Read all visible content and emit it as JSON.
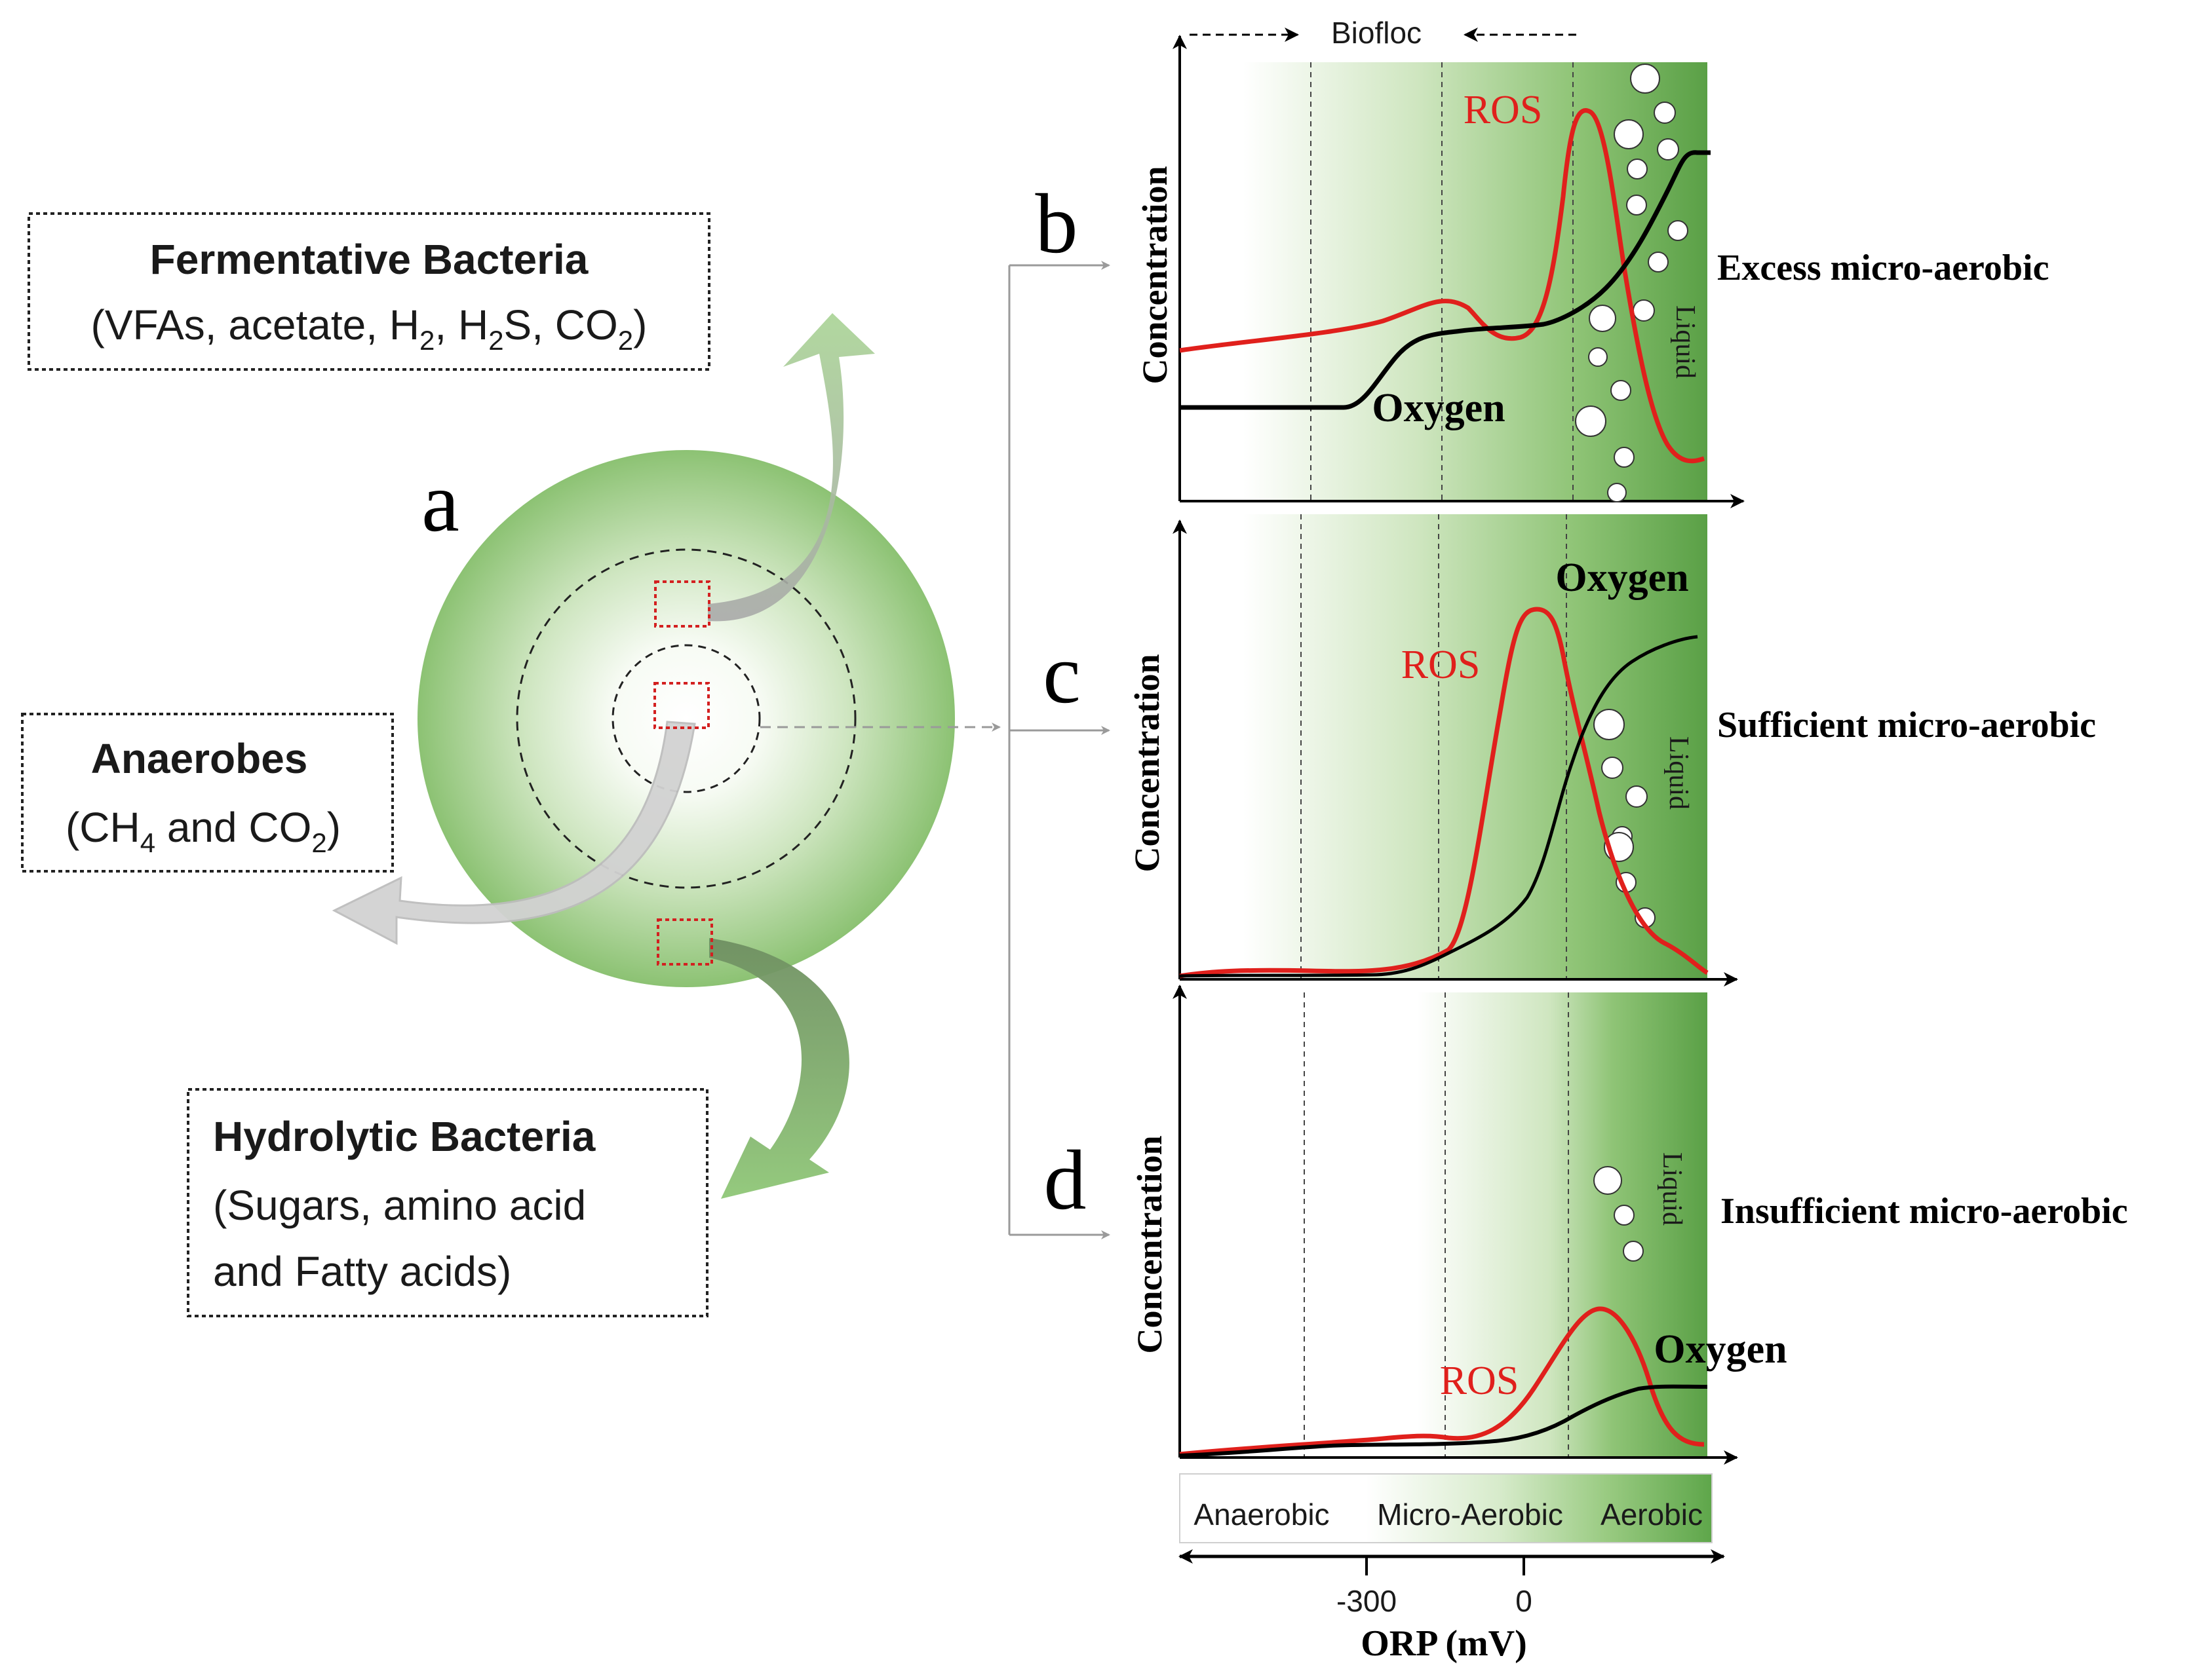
{
  "panel_a": {
    "label": "a",
    "fermentative": {
      "title": "Fermentative Bacteria",
      "products_prefix": "(VFAs, acetate, H",
      "products_sub1": "2",
      "products_mid1": ", H",
      "products_sub2": "2",
      "products_mid2": "S, CO",
      "products_sub3": "2",
      "products_suffix": ")"
    },
    "anaerobes": {
      "title": "Anaerobes",
      "products_prefix": "(CH",
      "products_sub1": "4",
      "products_mid": " and CO",
      "products_sub2": "2",
      "products_suffix": ")"
    },
    "hydrolytic": {
      "title": "Hydrolytic Bacteria",
      "line1": "(Sugars, amino acid",
      "line2": "and Fatty acids)"
    }
  },
  "biofloc_label": "Biofloc",
  "panels": [
    {
      "letter": "b",
      "ylabel": "Concentration",
      "ros_label": "ROS",
      "oxygen_label": "Oxygen",
      "liquid_label": "Liquid",
      "condition": "Excess micro-aerobic"
    },
    {
      "letter": "c",
      "ylabel": "Concentration",
      "ros_label": "ROS",
      "oxygen_label": "Oxygen",
      "liquid_label": "Liquid",
      "condition": "Sufficient micro-aerobic"
    },
    {
      "letter": "d",
      "ylabel": "Concentration",
      "ros_label": "ROS",
      "oxygen_label": "Oxygen",
      "liquid_label": "Liquid",
      "condition": "Insufficient micro-aerobic"
    }
  ],
  "zones": {
    "anaerobic": "Anaerobic",
    "micro_aerobic": "Micro-Aerobic",
    "aerobic": "Aerobic"
  },
  "orp_axis": {
    "label": "ORP (mV)",
    "ticks": [
      "-300",
      "0"
    ]
  },
  "colors": {
    "ros": "#e0201c",
    "oxygen": "#000000",
    "green_dark": "#5ea64a",
    "green_light": "#c9e3b9",
    "box_border": "#222222",
    "marker_red": "#d32020"
  }
}
